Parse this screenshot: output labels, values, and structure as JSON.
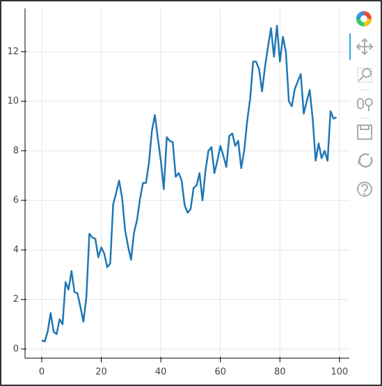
{
  "chart_data": {
    "type": "line",
    "x": [
      0,
      1,
      2,
      3,
      4,
      5,
      6,
      7,
      8,
      9,
      10,
      11,
      12,
      13,
      14,
      15,
      16,
      17,
      18,
      19,
      20,
      21,
      22,
      23,
      24,
      25,
      26,
      27,
      28,
      29,
      30,
      31,
      32,
      33,
      34,
      35,
      36,
      37,
      38,
      39,
      40,
      41,
      42,
      43,
      44,
      45,
      46,
      47,
      48,
      49,
      50,
      51,
      52,
      53,
      54,
      55,
      56,
      57,
      58,
      59,
      60,
      61,
      62,
      63,
      64,
      65,
      66,
      67,
      68,
      69,
      70,
      71,
      72,
      73,
      74,
      75,
      76,
      77,
      78,
      79,
      80,
      81,
      82,
      83,
      84,
      85,
      86,
      87,
      88,
      89,
      90,
      91,
      92,
      93,
      94,
      95,
      96,
      97,
      98,
      99
    ],
    "values": [
      0.35,
      0.3,
      0.7,
      1.45,
      0.7,
      0.6,
      1.2,
      1.0,
      2.7,
      2.4,
      3.15,
      2.3,
      2.25,
      1.7,
      1.1,
      2.1,
      4.65,
      4.5,
      4.45,
      3.7,
      4.1,
      3.85,
      3.3,
      3.45,
      5.85,
      6.3,
      6.8,
      6.1,
      4.8,
      4.15,
      3.6,
      4.7,
      5.2,
      6.05,
      6.7,
      6.7,
      7.5,
      8.8,
      9.45,
      8.5,
      7.6,
      6.45,
      8.55,
      8.4,
      8.35,
      6.95,
      7.1,
      6.8,
      5.8,
      5.5,
      5.65,
      6.5,
      6.6,
      7.1,
      6.0,
      7.2,
      8.0,
      8.15,
      7.1,
      7.6,
      8.2,
      7.8,
      7.35,
      8.6,
      8.7,
      8.2,
      8.4,
      7.3,
      8.0,
      9.2,
      10.1,
      11.6,
      11.6,
      11.3,
      10.4,
      11.4,
      12.2,
      12.95,
      11.8,
      13.05,
      11.6,
      12.6,
      12.0,
      10.0,
      9.8,
      10.5,
      10.8,
      11.1,
      9.5,
      10.0,
      10.45,
      9.3,
      7.6,
      8.3,
      7.7,
      8.0,
      7.6,
      9.6,
      9.3,
      9.35
    ],
    "color": "#1f77b4",
    "xlim": [
      -5.6,
      103.3
    ],
    "ylim": [
      -0.37,
      13.75
    ],
    "xticks": [
      0,
      20,
      40,
      60,
      80,
      100
    ],
    "yticks": [
      0,
      2,
      4,
      6,
      8,
      10,
      12
    ],
    "grid": true
  }
}
